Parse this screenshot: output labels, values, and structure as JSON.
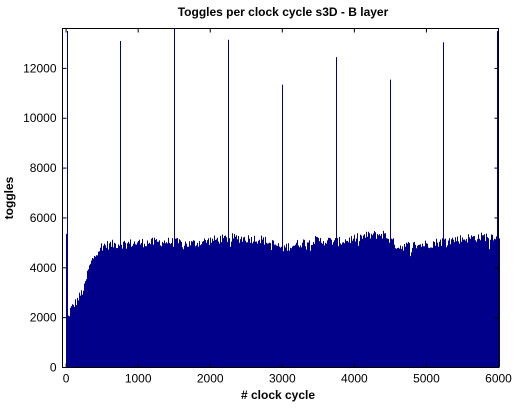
{
  "chart_data": {
    "type": "bar",
    "title": "Toggles per clock cycle s3D - B layer",
    "xlabel": "# clock cycle",
    "ylabel": "toggles",
    "xlim": [
      -50,
      6000
    ],
    "ylim": [
      0,
      13600
    ],
    "xticks": [
      0,
      1000,
      2000,
      3000,
      4000,
      5000,
      6000
    ],
    "yticks": [
      0,
      2000,
      4000,
      6000,
      8000,
      10000,
      12000
    ],
    "bar_color": "#00008b",
    "grid": false,
    "profile": [
      {
        "x": 0,
        "y": 1700
      },
      {
        "x": 50,
        "y": 2300
      },
      {
        "x": 150,
        "y": 2700
      },
      {
        "x": 250,
        "y": 3200
      },
      {
        "x": 300,
        "y": 3900
      },
      {
        "x": 400,
        "y": 4600
      },
      {
        "x": 500,
        "y": 4900
      },
      {
        "x": 700,
        "y": 4950
      },
      {
        "x": 1000,
        "y": 5000
      },
      {
        "x": 1400,
        "y": 5050
      },
      {
        "x": 1700,
        "y": 4950
      },
      {
        "x": 2000,
        "y": 5100
      },
      {
        "x": 2300,
        "y": 5200
      },
      {
        "x": 2700,
        "y": 5150
      },
      {
        "x": 3000,
        "y": 4800
      },
      {
        "x": 3400,
        "y": 5100
      },
      {
        "x": 3800,
        "y": 5050
      },
      {
        "x": 4200,
        "y": 5300
      },
      {
        "x": 4400,
        "y": 5350
      },
      {
        "x": 4600,
        "y": 4850
      },
      {
        "x": 5000,
        "y": 4950
      },
      {
        "x": 5300,
        "y": 5100
      },
      {
        "x": 5600,
        "y": 5200
      },
      {
        "x": 6000,
        "y": 5300
      }
    ],
    "spikes": [
      {
        "x": 10,
        "y": 13500
      },
      {
        "x": 750,
        "y": 13100
      },
      {
        "x": 1500,
        "y": 13600
      },
      {
        "x": 2250,
        "y": 13150
      },
      {
        "x": 2990,
        "y": 11350
      },
      {
        "x": 3740,
        "y": 12450
      },
      {
        "x": 4490,
        "y": 11550
      },
      {
        "x": 5230,
        "y": 13050
      },
      {
        "x": 5975,
        "y": 13500
      }
    ]
  }
}
